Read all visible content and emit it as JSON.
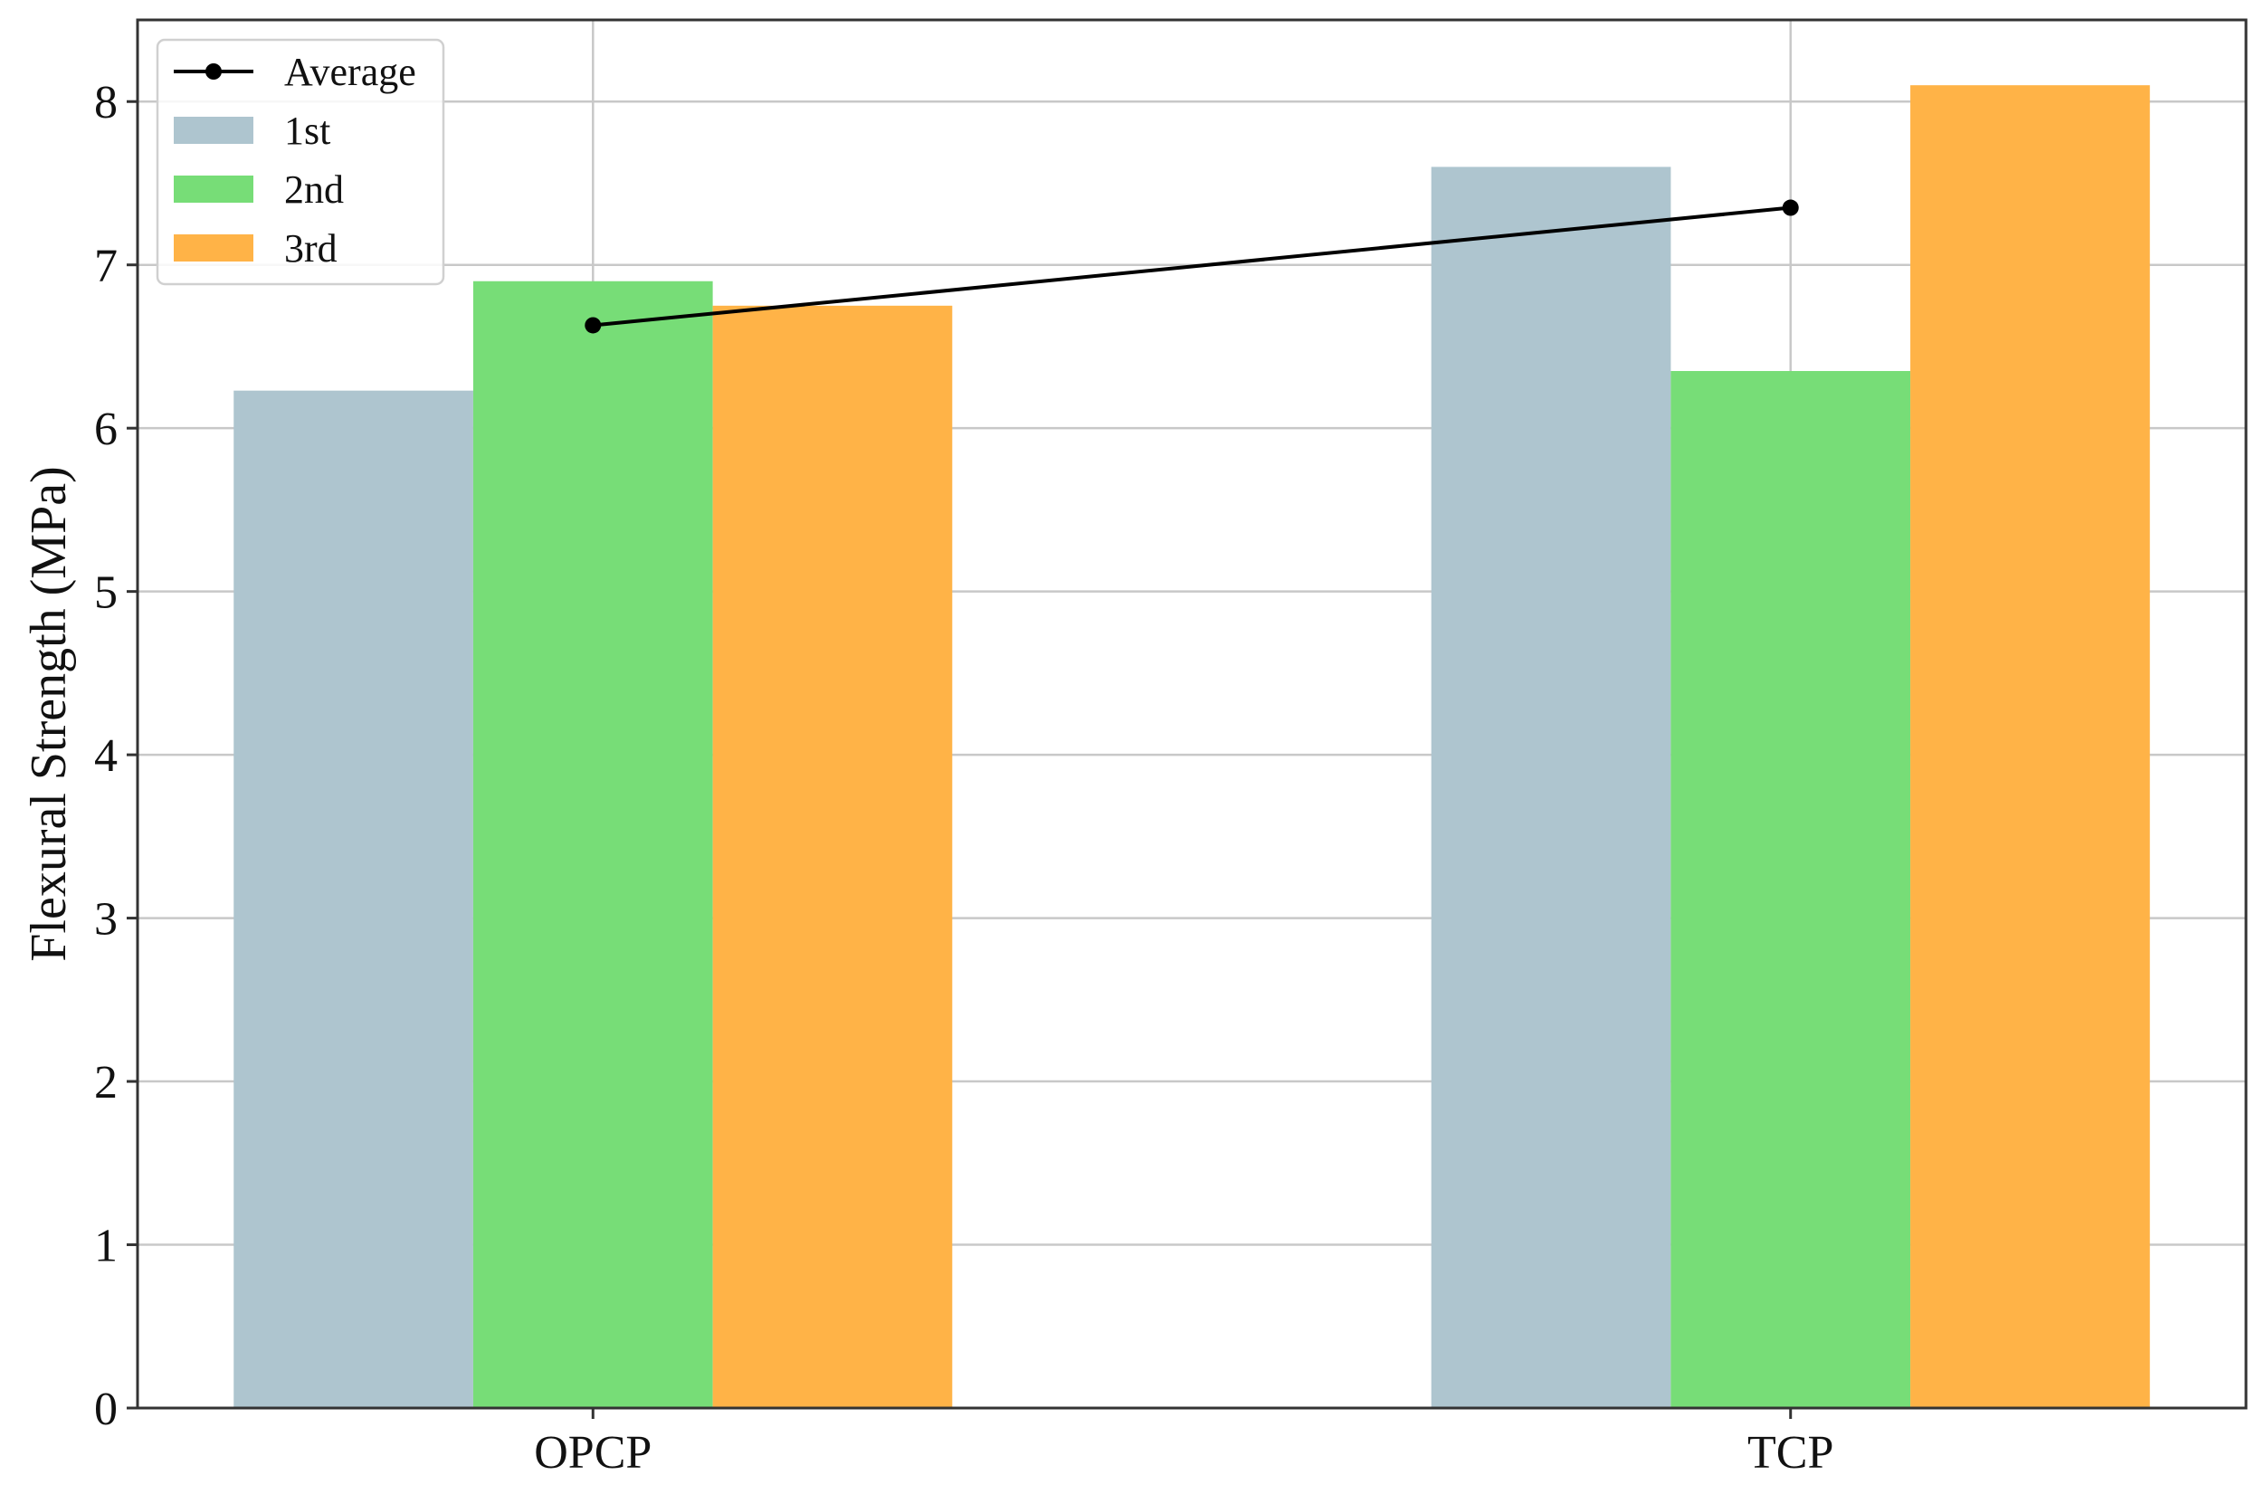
{
  "chart_data": {
    "type": "bar",
    "categories": [
      "OPCP",
      "TCP"
    ],
    "series": [
      {
        "name": "1st",
        "values": [
          6.23,
          7.6
        ],
        "color": "#aec5cf"
      },
      {
        "name": "2nd",
        "values": [
          6.9,
          6.35
        ],
        "color": "#77dd77"
      },
      {
        "name": "3rd",
        "values": [
          6.75,
          8.1
        ],
        "color": "#ffb347"
      }
    ],
    "line_series": {
      "name": "Average",
      "values": [
        6.63,
        7.35
      ],
      "color": "#000000"
    },
    "title": "",
    "xlabel": "",
    "ylabel": "Flexural Strength (MPa)",
    "ylim": [
      0,
      8.5
    ],
    "yticks": [
      0,
      1,
      2,
      3,
      4,
      5,
      6,
      7,
      8
    ],
    "grid": true,
    "legend_position": "top-left",
    "legend_order": [
      "Average",
      "1st",
      "2nd",
      "3rd"
    ]
  }
}
